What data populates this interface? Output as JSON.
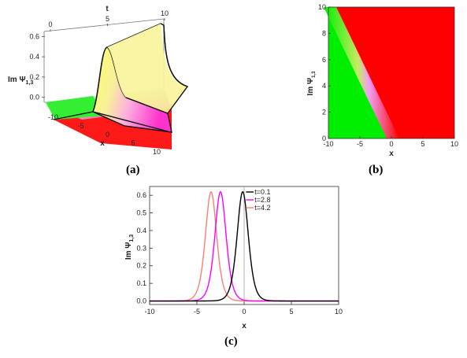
{
  "panels": {
    "a": {
      "label": "(a)"
    },
    "b": {
      "label": "(b)"
    },
    "c": {
      "label": "(c)"
    }
  },
  "chart_data": [
    {
      "id": "a",
      "type": "surface3d",
      "xlabel": "x",
      "ylabel": "t",
      "zlabel": "Im Ψ",
      "zlabel_sub": "1,3",
      "xlim": [
        -10,
        10
      ],
      "ylim": [
        0,
        10
      ],
      "zlim": [
        -0.05,
        0.65
      ],
      "x_ticks": [
        -10,
        -5,
        0,
        5,
        10
      ],
      "t_ticks": [
        0,
        5,
        10
      ],
      "z_ticks": [
        0.0,
        0.2,
        0.4,
        0.6
      ],
      "peak_height": 0.62,
      "colors": {
        "low": "#00ff00",
        "high": "#ff0000",
        "mid": "#ff00ff",
        "yellow": "#ffff00"
      }
    },
    {
      "id": "b",
      "type": "heatmap",
      "xlabel": "x",
      "ylabel": "Im Ψ",
      "ylabel_sub": "1,3",
      "xlim": [
        -10,
        10
      ],
      "ylim": [
        0,
        10
      ],
      "x_ticks": [
        -10,
        -5,
        0,
        5,
        10
      ],
      "y_ticks": [
        0,
        2,
        4,
        6,
        8,
        10
      ],
      "boundary": [
        [
          -10,
          10
        ],
        [
          0,
          0
        ]
      ],
      "colors": {
        "left": "#00ee00",
        "right": "#ff0000",
        "edge": "#ff88ff"
      }
    },
    {
      "id": "c",
      "type": "line",
      "xlabel": "x",
      "ylabel": "Im Ψ",
      "ylabel_sub": "1,3",
      "xlim": [
        -10,
        10
      ],
      "ylim": [
        -0.02,
        0.65
      ],
      "x_ticks": [
        -10,
        -5,
        0,
        5,
        10
      ],
      "y_ticks": [
        0.0,
        0.1,
        0.2,
        0.3,
        0.4,
        0.5,
        0.6
      ],
      "legend_position": "top-right",
      "series": [
        {
          "name": "t=0.1",
          "color": "#000000",
          "center": -0.15,
          "peak": 0.62,
          "width": 0.8
        },
        {
          "name": "t=2.8",
          "color": "#ff00ff",
          "center": -2.5,
          "peak": 0.62,
          "width": 0.8
        },
        {
          "name": "t=4.2",
          "color": "#fa8072",
          "center": -3.5,
          "peak": 0.62,
          "width": 0.8
        }
      ]
    }
  ]
}
